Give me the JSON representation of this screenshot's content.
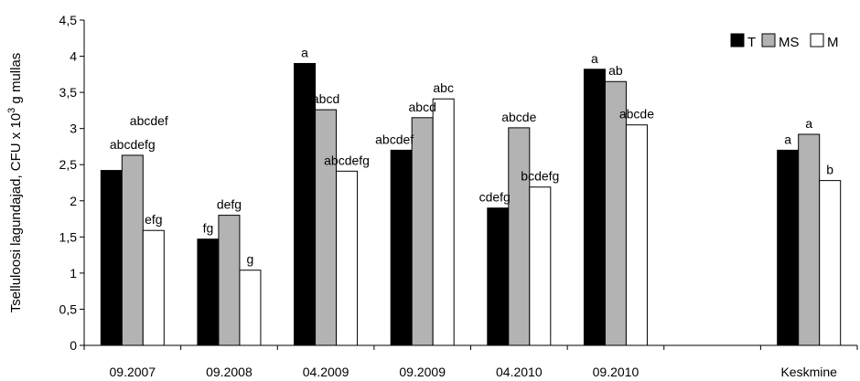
{
  "chart_data": {
    "type": "bar",
    "title": "",
    "xlabel": "",
    "ylabel": "Tselluloosi lagundajad, CFU x 10",
    "ylabel_superscript": "3",
    "ylabel_suffix": " g mullas",
    "ylim": [
      0,
      4.5
    ],
    "yticks": [
      "0",
      "0,5",
      "1",
      "1,5",
      "2",
      "2,5",
      "3",
      "3,5",
      "4",
      "4,5"
    ],
    "grid": false,
    "legend_position": "top-right",
    "categories": [
      "09.2007",
      "09.2008",
      "04.2009",
      "09.2009",
      "04.2010",
      "09.2010",
      "",
      "Keskmine"
    ],
    "series": [
      {
        "name": "T",
        "color": "#000000",
        "values": [
          2.42,
          1.47,
          3.9,
          2.7,
          1.9,
          3.82,
          null,
          2.7
        ],
        "labels": [
          "",
          "fg",
          "a",
          "abcdef",
          "cdefg",
          "a",
          "",
          "a"
        ]
      },
      {
        "name": "MS",
        "color": "#b3b3b3",
        "values": [
          2.63,
          1.8,
          3.26,
          3.15,
          3.01,
          3.65,
          null,
          2.92
        ],
        "labels": [
          "abcdefg",
          "defg",
          "abcd",
          "abcd",
          "abcde",
          "ab",
          "",
          "a"
        ]
      },
      {
        "name": "M",
        "color": "#ffffff",
        "values": [
          1.59,
          1.04,
          2.41,
          3.41,
          2.19,
          3.05,
          null,
          2.28
        ],
        "labels": [
          "efg",
          "g",
          "abcdefg",
          "abc",
          "bcdefg",
          "abcde",
          "",
          "b"
        ]
      }
    ],
    "annotations": [
      {
        "text": "abcdef",
        "category_index": 0
      }
    ]
  }
}
